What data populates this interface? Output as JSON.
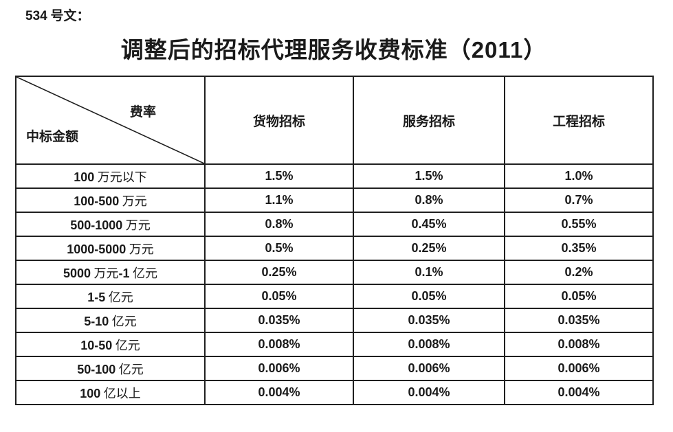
{
  "doc": {
    "ref_label": "534 号文：",
    "title": "调整后的招标代理服务收费标准（2011）"
  },
  "table": {
    "corner": {
      "top_right": "费率",
      "bottom_left": "中标金额"
    },
    "columns": [
      "货物招标",
      "服务招标",
      "工程招标"
    ],
    "rows": [
      {
        "label": "100 万元以下",
        "values": [
          "1.5%",
          "1.5%",
          "1.0%"
        ]
      },
      {
        "label": "100-500 万元",
        "values": [
          "1.1%",
          "0.8%",
          "0.7%"
        ]
      },
      {
        "label": "500-1000 万元",
        "values": [
          "0.8%",
          "0.45%",
          "0.55%"
        ]
      },
      {
        "label": "1000-5000 万元",
        "values": [
          "0.5%",
          "0.25%",
          "0.35%"
        ]
      },
      {
        "label": "5000 万元-1 亿元",
        "values": [
          "0.25%",
          "0.1%",
          "0.2%"
        ]
      },
      {
        "label": "1-5 亿元",
        "values": [
          "0.05%",
          "0.05%",
          "0.05%"
        ]
      },
      {
        "label": "5-10 亿元",
        "values": [
          "0.035%",
          "0.035%",
          "0.035%"
        ]
      },
      {
        "label": "10-50 亿元",
        "values": [
          "0.008%",
          "0.008%",
          "0.008%"
        ]
      },
      {
        "label": "50-100 亿元",
        "values": [
          "0.006%",
          "0.006%",
          "0.006%"
        ]
      },
      {
        "label": "100 亿以上",
        "values": [
          "0.004%",
          "0.004%",
          "0.004%"
        ]
      }
    ]
  },
  "colors": {
    "text": "#1a1a1a",
    "border": "#1f1f1f",
    "background": "#ffffff"
  }
}
